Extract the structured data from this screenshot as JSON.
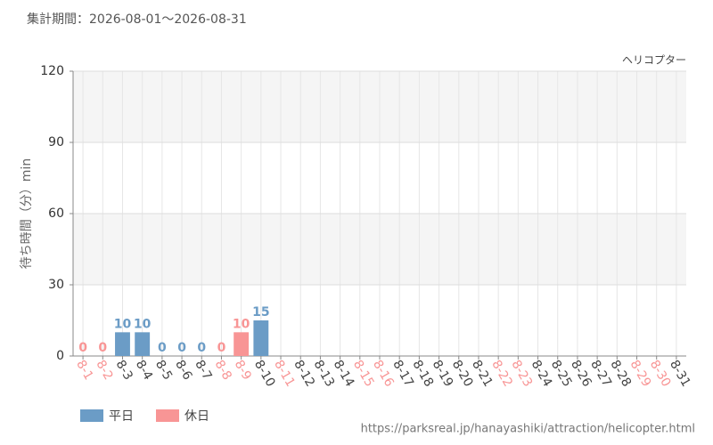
{
  "chart_data": {
    "type": "bar",
    "title": "集計期間：2026-08-01～2026-08-31",
    "subtitle": "ヘリコプター",
    "y_label": "待ち時間（分）min",
    "source": "https://parksreal.jp/hanayashiki/attraction/helicopter.html",
    "categories": [
      "8-1",
      "8-2",
      "8-3",
      "8-4",
      "8-5",
      "8-6",
      "8-7",
      "8-8",
      "8-9",
      "8-10",
      "8-11",
      "8-12",
      "8-13",
      "8-14",
      "8-15",
      "8-16",
      "8-17",
      "8-18",
      "8-19",
      "8-20",
      "8-21",
      "8-22",
      "8-23",
      "8-24",
      "8-25",
      "8-26",
      "8-27",
      "8-28",
      "8-29",
      "8-30",
      "8-31"
    ],
    "holidays": [
      true,
      true,
      false,
      false,
      false,
      false,
      false,
      true,
      true,
      false,
      true,
      false,
      false,
      false,
      true,
      true,
      false,
      false,
      false,
      false,
      false,
      true,
      true,
      false,
      false,
      false,
      false,
      false,
      true,
      true,
      false
    ],
    "series": [
      {
        "name": "平日",
        "color": "#6b9cc6",
        "values": [
          null,
          null,
          10,
          10,
          0,
          0,
          0,
          null,
          null,
          15,
          null,
          null,
          null,
          null,
          null,
          null,
          null,
          null,
          null,
          null,
          null,
          null,
          null,
          null,
          null,
          null,
          null,
          null,
          null,
          null,
          null
        ]
      },
      {
        "name": "休日",
        "color": "#f89595",
        "values": [
          0,
          0,
          null,
          null,
          null,
          null,
          null,
          0,
          10,
          null,
          null,
          null,
          null,
          null,
          null,
          null,
          null,
          null,
          null,
          null,
          null,
          null,
          null,
          null,
          null,
          null,
          null,
          null,
          null,
          null,
          null
        ]
      }
    ],
    "ylim": [
      0,
      120
    ],
    "yticks": [
      0,
      30,
      60,
      90,
      120
    ],
    "grid": true
  }
}
